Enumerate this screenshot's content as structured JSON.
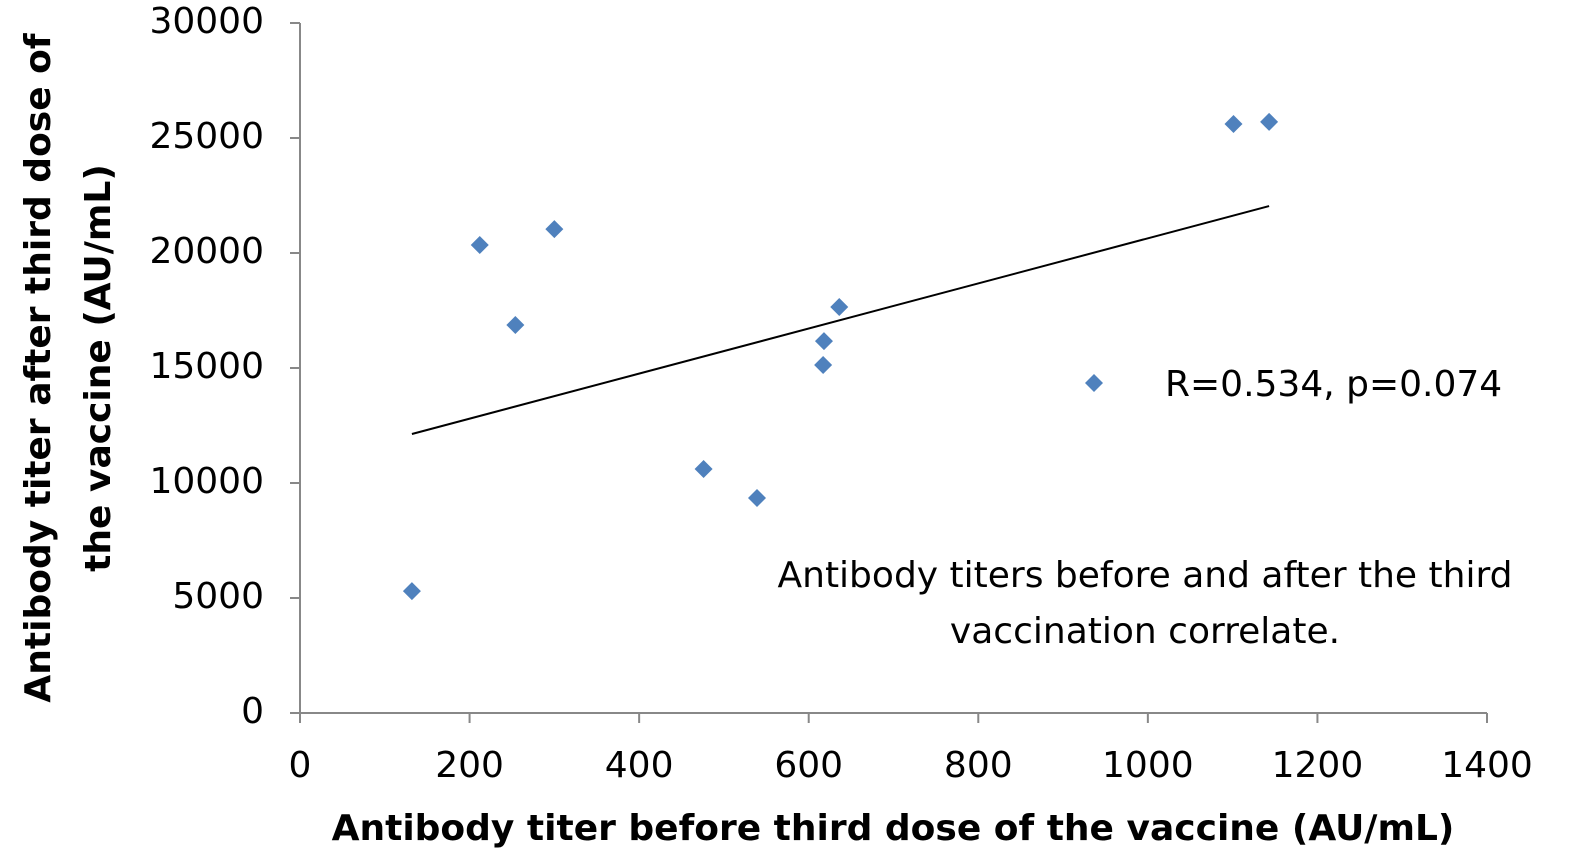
{
  "chart_data": {
    "type": "scatter",
    "xlabel": "Antibody titer before third dose of the vaccine (AU/mL)",
    "ylabel": [
      "Antibody titer after third dose of",
      "the vaccine (AU/mL)"
    ],
    "annotation": [
      "Antibody titers before and after the third",
      "vaccination correlate."
    ],
    "series": [
      {
        "name": "R=0.534, p=0.074",
        "color": "#4f81bd",
        "x": [
          132,
          212,
          254,
          300,
          476,
          539,
          617,
          618,
          636,
          1101,
          1143
        ],
        "values": [
          5300,
          20350,
          16870,
          21040,
          10610,
          9350,
          15130,
          16170,
          17650,
          25610,
          25700
        ]
      }
    ],
    "trendline": {
      "color": "#000000",
      "x": [
        132,
        1143
      ],
      "values": [
        12130,
        22040
      ]
    },
    "xlim": [
      0,
      1400
    ],
    "xticks": [
      0,
      200,
      400,
      600,
      800,
      1000,
      1200,
      1400
    ],
    "ylim": [
      0,
      30000
    ],
    "yticks": [
      0,
      5000,
      10000,
      15000,
      20000,
      25000,
      30000
    ],
    "grid": false,
    "legend": "right"
  }
}
